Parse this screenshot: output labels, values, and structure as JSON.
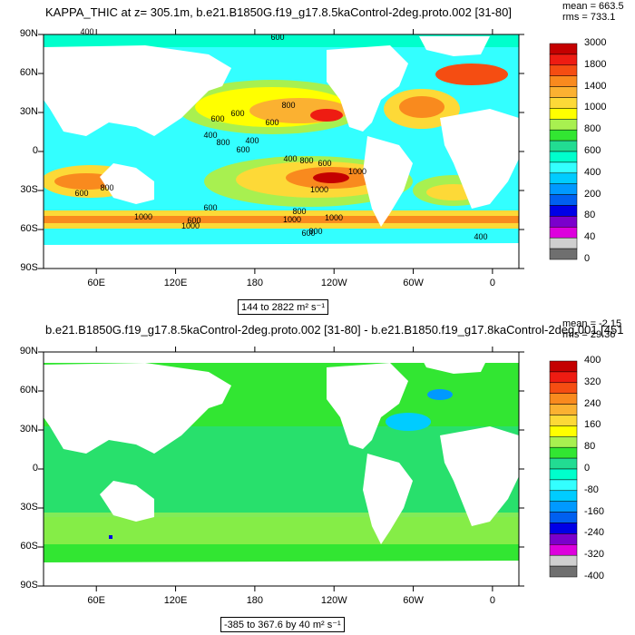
{
  "chart_data": [
    {
      "type": "heatmap",
      "title": "KAPPA_THIC at z= 305.1m, b.e21.B1850G.f19_g17.8.5kaControl-2deg.proto.002 [31-80]",
      "stats": {
        "mean": "mean = 663.5",
        "rms": "rms = 733.1"
      },
      "range_label": "144 to 2822 m² s⁻¹",
      "y_ticks": [
        "90N",
        "60N",
        "30N",
        "0",
        "30S",
        "60S",
        "90S"
      ],
      "x_ticks": [
        "60E",
        "120E",
        "180",
        "120W",
        "60W",
        "0"
      ],
      "contour_labels": [
        "400",
        "600",
        "600",
        "600",
        "800",
        "600",
        "400",
        "800",
        "600",
        "400",
        "800",
        "600",
        "400",
        "600",
        "1000",
        "800",
        "1000",
        "600",
        "1000",
        "600",
        "800",
        "1000",
        "1000",
        "1000",
        "800",
        "600",
        "400"
      ],
      "colorbar": {
        "labels": [
          "3000",
          "1800",
          "1400",
          "1000",
          "800",
          "600",
          "400",
          "200",
          "80",
          "40",
          "0"
        ],
        "colors": [
          "#c40000",
          "#ee1c12",
          "#f54d12",
          "#f98a1e",
          "#fbb131",
          "#fdd937",
          "#ffff00",
          "#a8f050",
          "#32e632",
          "#22dc92",
          "#00ffcc",
          "#33ffff",
          "#00ccff",
          "#0099ff",
          "#0060f0",
          "#0000e6",
          "#7b00cc",
          "#dd00dd",
          "#cfcfcf",
          "#6f6f6f"
        ]
      }
    },
    {
      "type": "heatmap",
      "title": "b.e21.B1850G.f19_g17.8.5kaControl-2deg.proto.002 [31-80] - b.e21.B1850.f19_g17.8kaControl-2deg.001 [451",
      "stats": {
        "mean": "mean = -2.15",
        "rms": "rms = 29.36"
      },
      "range_label": "-385 to 367.6 by 40 m² s⁻¹",
      "y_ticks": [
        "90N",
        "60N",
        "30N",
        "0",
        "30S",
        "60S",
        "90S"
      ],
      "x_ticks": [
        "60E",
        "120E",
        "180",
        "120W",
        "60W",
        "0"
      ],
      "colorbar": {
        "labels": [
          "400",
          "320",
          "240",
          "160",
          "80",
          "0",
          "-80",
          "-160",
          "-240",
          "-320",
          "-400"
        ],
        "colors": [
          "#c40000",
          "#ee1c12",
          "#f54d12",
          "#f98a1e",
          "#fbb131",
          "#fdd937",
          "#ffff00",
          "#a8f050",
          "#32e632",
          "#22dc92",
          "#00ffcc",
          "#33ffff",
          "#00ccff",
          "#0099ff",
          "#0060f0",
          "#0000e6",
          "#7b00cc",
          "#dd00dd",
          "#cfcfcf",
          "#6f6f6f"
        ]
      }
    }
  ]
}
